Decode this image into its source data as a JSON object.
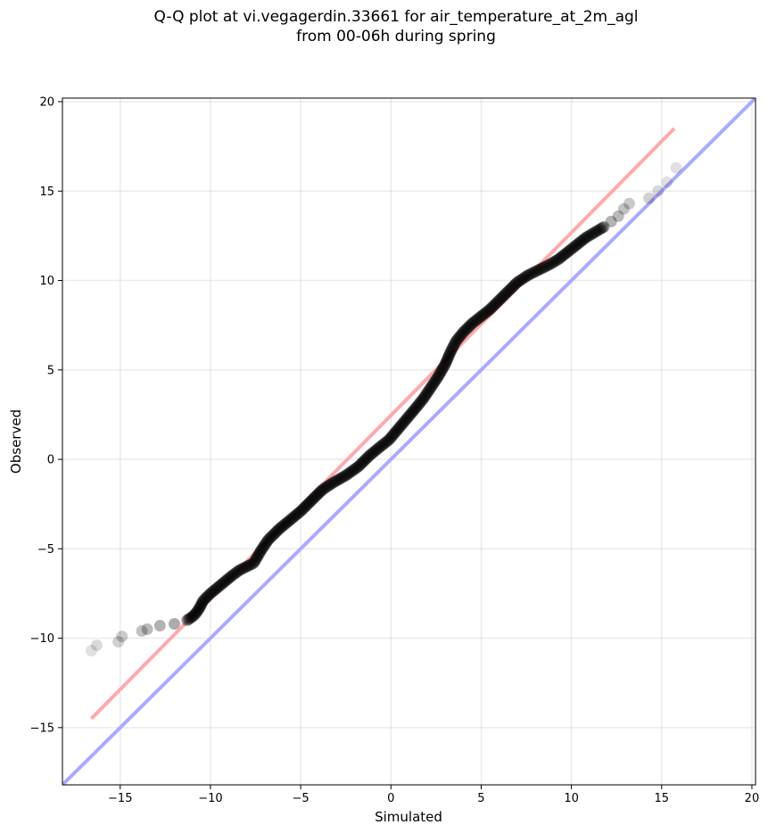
{
  "title_lines": [
    "Q-Q plot at vi.vegagerdin.33661 for air_temperature_at_2m_agl",
    "from 00-06h during spring"
  ],
  "chart_data": {
    "type": "scatter",
    "title": "Q-Q plot at vi.vegagerdin.33661 for air_temperature_at_2m_agl\nfrom 00-06h during spring",
    "xlabel": "Simulated",
    "ylabel": "Observed",
    "xlim": [
      -18.2,
      20.2
    ],
    "ylim": [
      -18.2,
      20.2
    ],
    "x_ticks": [
      -15,
      -10,
      -5,
      0,
      5,
      10,
      15,
      20
    ],
    "y_ticks": [
      -15,
      -10,
      -5,
      0,
      5,
      10,
      15,
      20
    ],
    "x_tick_labels": [
      "−15",
      "−10",
      "−5",
      "0",
      "5",
      "10",
      "15",
      "20"
    ],
    "y_tick_labels": [
      "−15",
      "−10",
      "−5",
      "0",
      "5",
      "10",
      "15",
      "20"
    ],
    "grid": true,
    "identity_line": {
      "color": "#aaaaff",
      "from": [
        -18.2,
        -18.2
      ],
      "to": [
        20.2,
        20.2
      ]
    },
    "fit_line": {
      "color": "#ffaaaa",
      "from": [
        -16.6,
        -14.5
      ],
      "to": [
        15.7,
        18.5
      ]
    },
    "point_color": "#000000",
    "quantiles": [
      [
        -16.6,
        -10.7
      ],
      [
        -16.3,
        -10.4
      ],
      [
        -15.1,
        -10.2
      ],
      [
        -14.9,
        -9.9
      ],
      [
        -13.8,
        -9.6
      ],
      [
        -13.5,
        -9.5
      ],
      [
        -12.8,
        -9.3
      ],
      [
        -12.0,
        -9.2
      ],
      [
        -11.3,
        -9.0
      ],
      [
        -11.0,
        -8.8
      ],
      [
        -10.8,
        -8.6
      ],
      [
        -10.6,
        -8.3
      ],
      [
        -10.4,
        -7.9
      ],
      [
        -10.0,
        -7.5
      ],
      [
        -9.4,
        -7.0
      ],
      [
        -8.8,
        -6.5
      ],
      [
        -8.4,
        -6.2
      ],
      [
        -7.6,
        -5.8
      ],
      [
        -7.2,
        -5.1
      ],
      [
        -6.8,
        -4.5
      ],
      [
        -6.2,
        -3.9
      ],
      [
        -5.6,
        -3.4
      ],
      [
        -5.0,
        -2.9
      ],
      [
        -4.4,
        -2.3
      ],
      [
        -3.8,
        -1.7
      ],
      [
        -3.2,
        -1.3
      ],
      [
        -2.5,
        -0.9
      ],
      [
        -1.8,
        -0.4
      ],
      [
        -1.2,
        0.2
      ],
      [
        -0.6,
        0.7
      ],
      [
        -0.1,
        1.1
      ],
      [
        0.4,
        1.7
      ],
      [
        0.9,
        2.3
      ],
      [
        1.4,
        2.9
      ],
      [
        1.8,
        3.4
      ],
      [
        2.2,
        4.0
      ],
      [
        2.6,
        4.6
      ],
      [
        3.0,
        5.3
      ],
      [
        3.3,
        6.0
      ],
      [
        3.6,
        6.6
      ],
      [
        4.0,
        7.1
      ],
      [
        4.5,
        7.6
      ],
      [
        5.0,
        8.0
      ],
      [
        5.5,
        8.4
      ],
      [
        6.0,
        8.9
      ],
      [
        6.5,
        9.4
      ],
      [
        7.0,
        9.9
      ],
      [
        7.6,
        10.3
      ],
      [
        8.2,
        10.6
      ],
      [
        8.8,
        10.9
      ],
      [
        9.3,
        11.2
      ],
      [
        9.8,
        11.6
      ],
      [
        10.3,
        12.0
      ],
      [
        10.8,
        12.4
      ],
      [
        11.3,
        12.7
      ],
      [
        11.8,
        13.0
      ],
      [
        12.2,
        13.3
      ],
      [
        12.6,
        13.6
      ],
      [
        12.9,
        14.0
      ],
      [
        13.2,
        14.3
      ],
      [
        14.3,
        14.6
      ],
      [
        14.8,
        15.0
      ],
      [
        15.3,
        15.5
      ],
      [
        15.8,
        16.3
      ]
    ]
  }
}
